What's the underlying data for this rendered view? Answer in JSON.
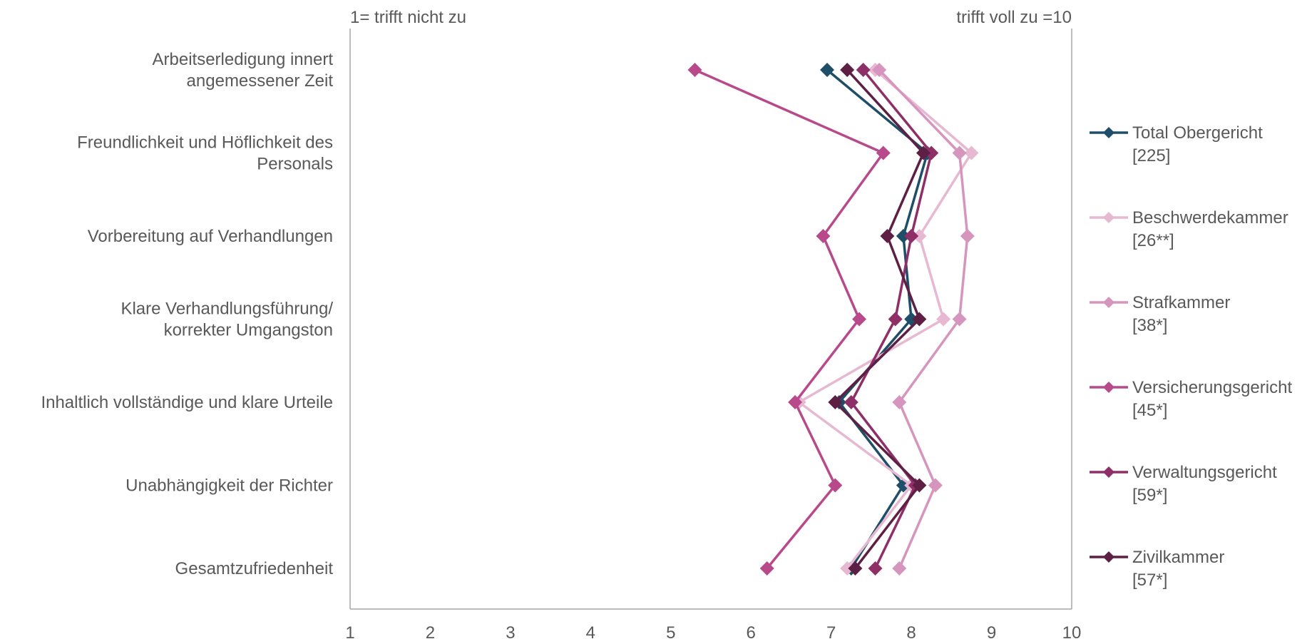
{
  "chart_data": {
    "type": "line",
    "orientation": "horizontal-values",
    "left_label": "1= trifft nicht zu",
    "right_label": "trifft voll zu =10",
    "xlim": [
      1,
      10
    ],
    "x_ticks": [
      1,
      2,
      3,
      4,
      5,
      6,
      7,
      8,
      9,
      10
    ],
    "categories": [
      [
        "Arbeitserledigung innert",
        "angemessener Zeit"
      ],
      [
        "Freundlichkeit und Höflichkeit des",
        "Personals"
      ],
      [
        "Vorbereitung auf Verhandlungen"
      ],
      [
        "Klare Verhandlungsführung/",
        "korrekter Umgangston"
      ],
      [
        "Inhaltlich vollständige und klare Urteile"
      ],
      [
        "Unabhängigkeit der Richter"
      ],
      [
        "Gesamtzufriedenheit"
      ]
    ],
    "legend_position": "right",
    "series": [
      {
        "name": "Total Obergericht",
        "n": "[225]",
        "color": "#1f4e68",
        "values": [
          6.95,
          8.2,
          7.9,
          8.0,
          7.1,
          7.9,
          7.25
        ]
      },
      {
        "name": "Beschwerdekammer",
        "n": "[26**]",
        "color": "#e7b8d1",
        "values": [
          7.55,
          8.75,
          8.1,
          8.4,
          6.6,
          8.0,
          7.2
        ]
      },
      {
        "name": "Strafkammer",
        "n": "[38*]",
        "color": "#d695bd",
        "values": [
          7.6,
          8.6,
          8.7,
          8.6,
          7.85,
          8.3,
          7.85
        ]
      },
      {
        "name": "Versicherungsgericht",
        "n": "[45*]",
        "color": "#b84a8b",
        "values": [
          5.3,
          7.65,
          6.9,
          7.35,
          6.55,
          7.05,
          6.2
        ]
      },
      {
        "name": "Verwaltungsgericht",
        "n": "[59*]",
        "color": "#8e2f68",
        "values": [
          7.4,
          8.25,
          8.0,
          7.8,
          7.25,
          8.05,
          7.55
        ]
      },
      {
        "name": "Zivilkammer",
        "n": "[57*]",
        "color": "#5e1f45",
        "values": [
          7.2,
          8.15,
          7.7,
          8.1,
          7.05,
          8.1,
          7.3
        ]
      }
    ]
  }
}
